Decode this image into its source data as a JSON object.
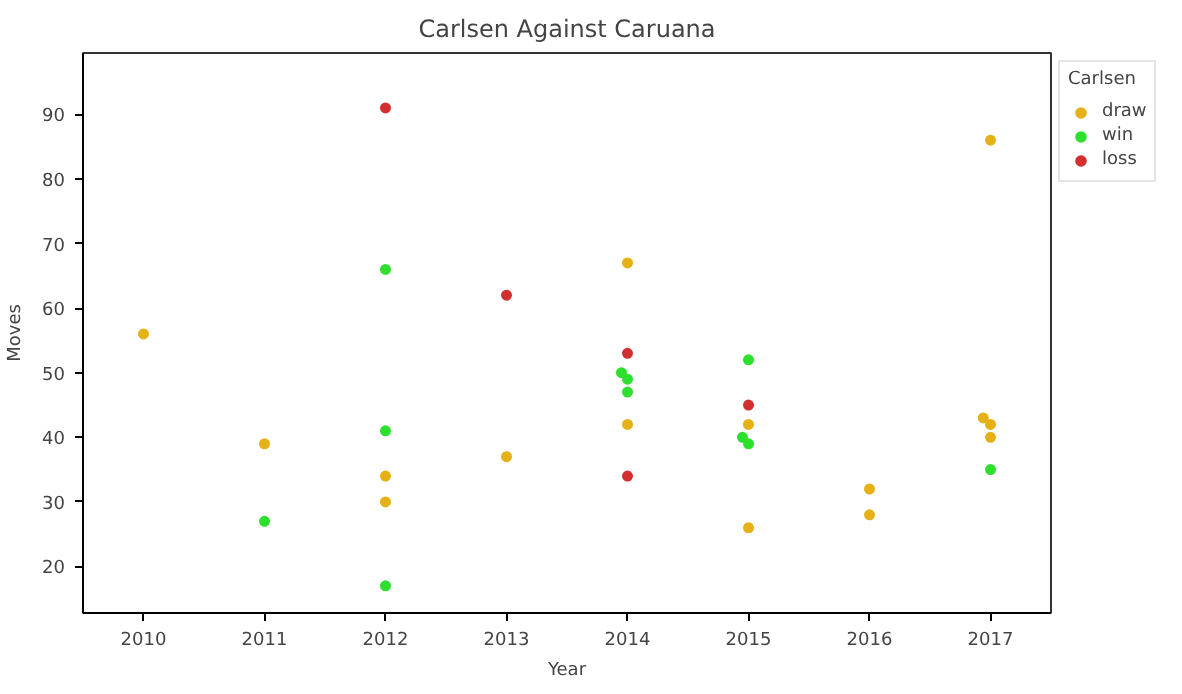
{
  "chart_data": {
    "type": "scatter",
    "title": "Carlsen Against Caruana",
    "xlabel": "Year",
    "ylabel": "Moves",
    "legend_title": "Carlsen",
    "series": [
      {
        "name": "draw",
        "color": "#e6b117",
        "x": [
          2010,
          2011,
          2012,
          2012,
          2013,
          2014,
          2014,
          2015,
          2015,
          2016,
          2016,
          2017,
          2016.94,
          2017,
          2017
        ],
        "values": [
          56,
          39,
          34,
          30,
          37,
          67,
          42,
          42,
          26,
          32,
          28,
          86,
          43,
          42,
          40
        ]
      },
      {
        "name": "win",
        "color": "#2ee02e",
        "x": [
          2011,
          2012,
          2012,
          2012,
          2013.95,
          2014,
          2014,
          2015,
          2014.95,
          2015,
          2017
        ],
        "values": [
          27,
          66,
          41,
          17,
          50,
          49,
          47,
          52,
          40,
          39,
          35
        ]
      },
      {
        "name": "loss",
        "color": "#d1302f",
        "x": [
          2012,
          2013,
          2014,
          2014,
          2015
        ],
        "values": [
          91,
          62,
          53,
          34,
          45
        ]
      }
    ],
    "xlim": [
      2009.5,
      2017.5
    ],
    "xticks": [
      2010,
      2011,
      2012,
      2013,
      2014,
      2015,
      2016,
      2017
    ],
    "ylim": [
      12.8,
      99.5
    ],
    "yticks": [
      20,
      30,
      40,
      50,
      60,
      70,
      80,
      90
    ],
    "marker": "circle",
    "grid": false,
    "legend": "top right"
  }
}
